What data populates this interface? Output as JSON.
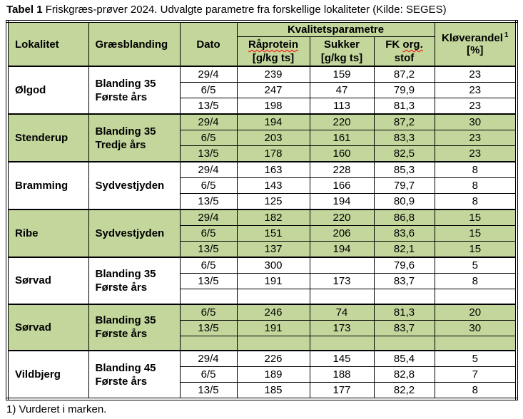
{
  "title": {
    "label": "Tabel 1",
    "text": "Friskgræs-prøver 2024. Udvalgte parametre fra forskellige lokaliteter (Kilde: SEGES)"
  },
  "colors": {
    "group_shade_green": "#c3d69b",
    "border": "#000000",
    "spellcheck_squiggle": "#ff0000",
    "text": "#000000",
    "background": "#ffffff"
  },
  "table": {
    "header": {
      "col_lokalitet": "Lokalitet",
      "col_graesblanding": "Græsblanding",
      "col_dato": "Dato",
      "group_kvalitet": "Kvalitetsparametre",
      "col_raaprotein_name": "Råprotein",
      "col_raaprotein_unit": "[g/kg ts]",
      "col_sukker_name": "Sukker",
      "col_sukker_unit": "[g/kg ts]",
      "col_fk_prefix": "FK",
      "col_fk_misspelled": "org.",
      "col_fk_line2": "stof",
      "col_kloever_name": "Kløverandel",
      "col_kloever_sup": "1",
      "col_kloever_unit": "[%]"
    },
    "groups": [
      {
        "lokalitet": "Ølgod",
        "blanding": [
          "Blanding 35",
          "Første års"
        ],
        "shade": "white",
        "rows": [
          [
            "29/4",
            "239",
            "159",
            "87,2",
            "23"
          ],
          [
            "6/5",
            "247",
            "47",
            "79,9",
            "23"
          ],
          [
            "13/5",
            "198",
            "113",
            "81,3",
            "23"
          ]
        ]
      },
      {
        "lokalitet": "Stenderup",
        "blanding": [
          "Blanding 35",
          "Tredje års"
        ],
        "shade": "green",
        "rows": [
          [
            "29/4",
            "194",
            "220",
            "87,2",
            "30"
          ],
          [
            "6/5",
            "203",
            "161",
            "83,3",
            "23"
          ],
          [
            "13/5",
            "178",
            "160",
            "82,5",
            "23"
          ]
        ]
      },
      {
        "lokalitet": "Bramming",
        "blanding": [
          "Sydvestjyden"
        ],
        "shade": "white",
        "rows": [
          [
            "29/4",
            "163",
            "228",
            "85,3",
            "8"
          ],
          [
            "6/5",
            "143",
            "166",
            "79,7",
            "8"
          ],
          [
            "13/5",
            "125",
            "194",
            "80,9",
            "8"
          ]
        ]
      },
      {
        "lokalitet": "Ribe",
        "blanding": [
          "Sydvestjyden"
        ],
        "shade": "green",
        "rows": [
          [
            "29/4",
            "182",
            "220",
            "86,8",
            "15"
          ],
          [
            "6/5",
            "151",
            "206",
            "83,6",
            "15"
          ],
          [
            "13/5",
            "137",
            "194",
            "82,1",
            "15"
          ]
        ]
      },
      {
        "lokalitet": "Sørvad",
        "blanding": [
          "Blanding 35",
          "Første års"
        ],
        "shade": "white",
        "rows": [
          [
            "6/5",
            "300",
            "",
            "79,6",
            "5"
          ],
          [
            "13/5",
            "191",
            "173",
            "83,7",
            "8"
          ],
          [
            "",
            "",
            "",
            "",
            ""
          ]
        ]
      },
      {
        "lokalitet": "Sørvad",
        "blanding": [
          "Blanding 35",
          "Første års"
        ],
        "shade": "green",
        "rows": [
          [
            "6/5",
            "246",
            "74",
            "81,3",
            "20"
          ],
          [
            "13/5",
            "191",
            "173",
            "83,7",
            "30"
          ],
          [
            "",
            "",
            "",
            "",
            ""
          ]
        ]
      },
      {
        "lokalitet": "Vildbjerg",
        "blanding": [
          "Blanding 45",
          "Første års"
        ],
        "shade": "white",
        "rows": [
          [
            "29/4",
            "226",
            "145",
            "85,4",
            "5"
          ],
          [
            "6/5",
            "189",
            "188",
            "82,8",
            "7"
          ],
          [
            "13/5",
            "185",
            "177",
            "82,2",
            "8"
          ]
        ]
      }
    ]
  },
  "footnote": "1) Vurderet i marken."
}
